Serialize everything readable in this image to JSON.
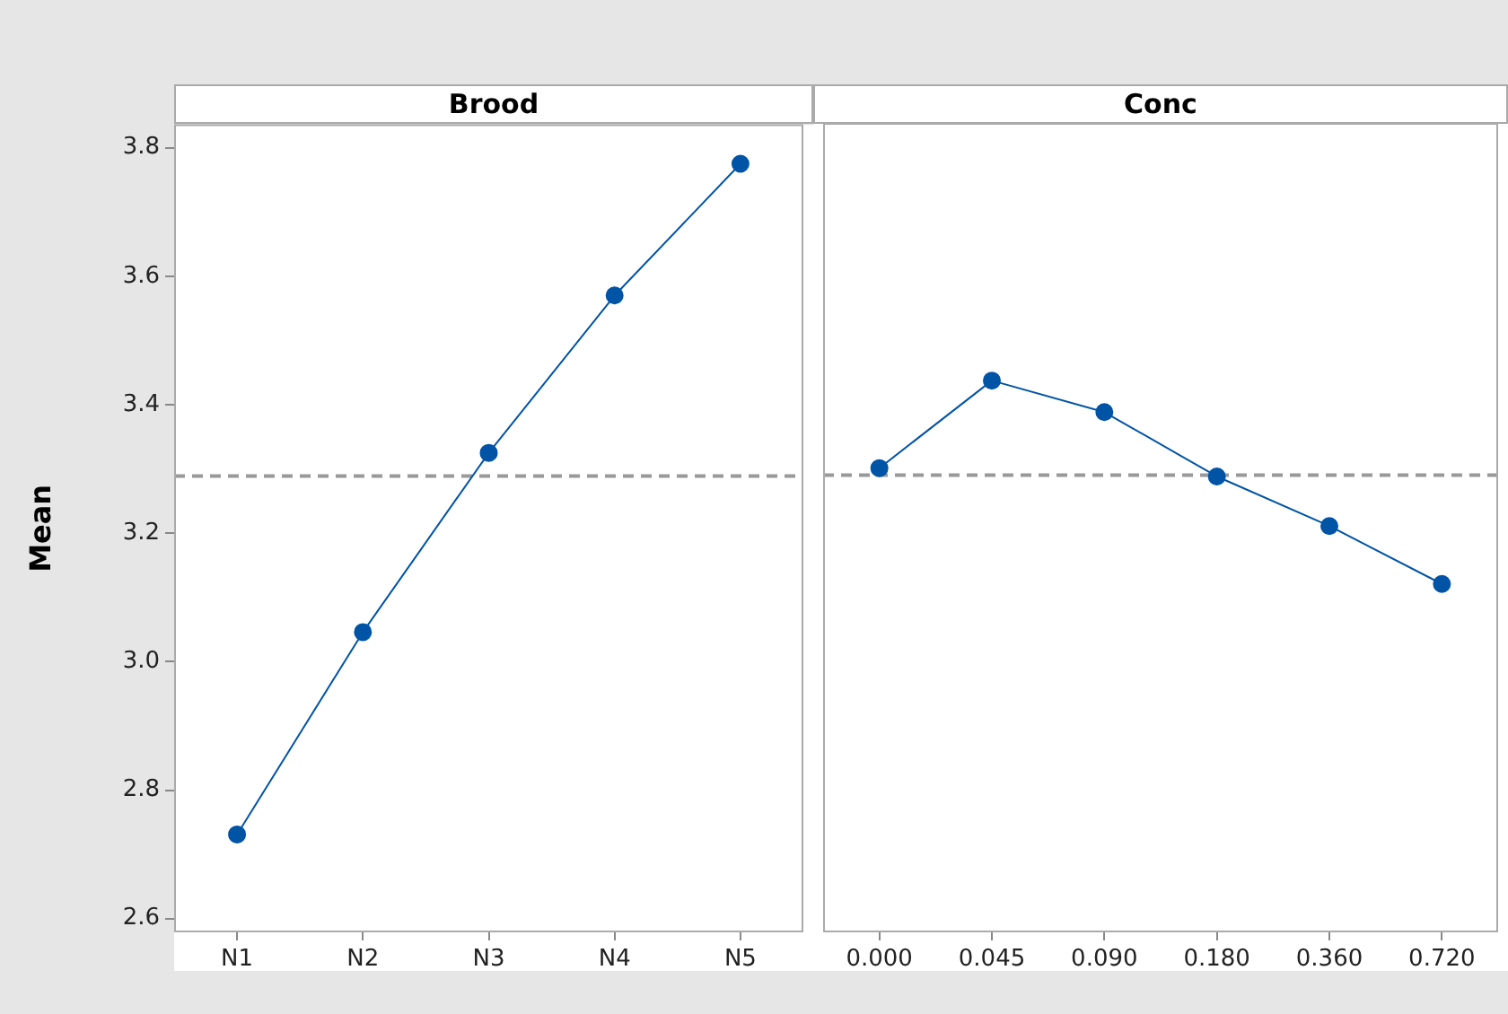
{
  "chart_data": [
    {
      "type": "line",
      "title": "Brood",
      "ylabel": "Mean",
      "categories": [
        "N1",
        "N2",
        "N3",
        "N4",
        "N5"
      ],
      "series": [
        {
          "color": "#0054a6",
          "values": [
            2.731,
            3.046,
            3.325,
            3.57,
            3.775
          ]
        }
      ],
      "ylim": [
        2.58,
        3.835
      ],
      "yticks": [
        2.6,
        2.8,
        {
          "value": 3,
          "label": "3.0"
        },
        3.2,
        3.4,
        3.6,
        3.8
      ],
      "grid": false,
      "legend": false,
      "marker": "circle",
      "line_style": "solid",
      "ref_lines": [
        {
          "axis": "y",
          "value": 3.289,
          "color": "#999999",
          "line_style": "dashed"
        }
      ]
    },
    {
      "type": "line",
      "title": "Conc",
      "categories": [
        "0.000",
        "0.045",
        "0.090",
        "0.180",
        "0.360",
        "0.720"
      ],
      "series": [
        {
          "color": "#0054a6",
          "values": [
            3.3,
            3.436,
            3.387,
            3.287,
            3.21,
            3.12
          ]
        }
      ],
      "ylim": [
        2.58,
        3.835
      ],
      "yticks": [
        2.6,
        2.8,
        3,
        3.2,
        3.4,
        3.6,
        3.8
      ],
      "tick_labels": "x",
      "grid": false,
      "legend": false,
      "marker": "circle",
      "line_style": "solid",
      "ref_lines": [
        {
          "axis": "y",
          "value": 3.289,
          "color": "#999999",
          "line_style": "dashed"
        }
      ]
    }
  ]
}
